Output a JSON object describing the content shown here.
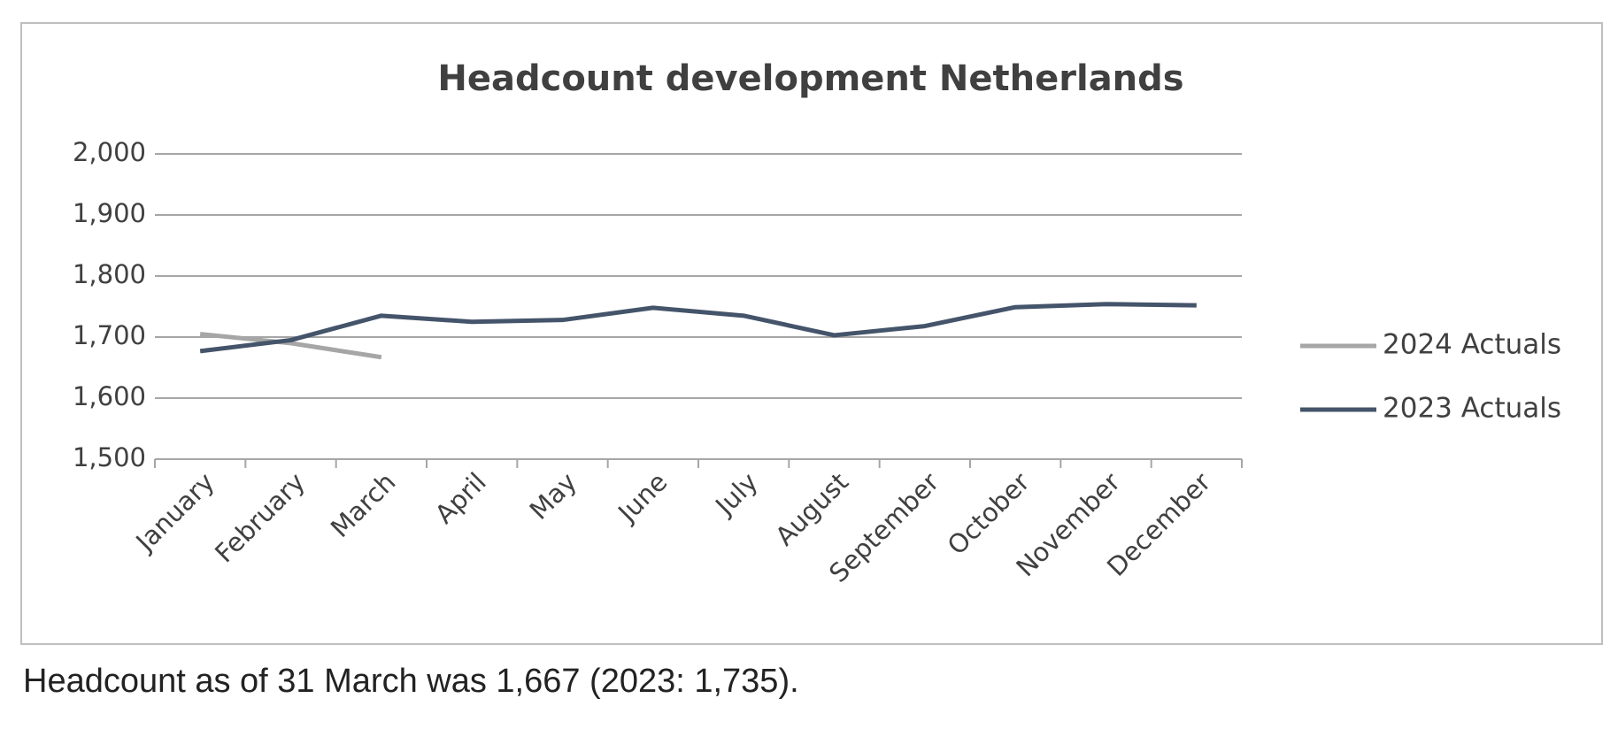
{
  "chart_data": {
    "type": "line",
    "title": "Headcount development Netherlands",
    "categories": [
      "January",
      "February",
      "March",
      "April",
      "May",
      "June",
      "July",
      "August",
      "September",
      "October",
      "November",
      "December"
    ],
    "series": [
      {
        "name": "2024 Actuals",
        "color": "#a6a6a6",
        "values": [
          1705,
          1690,
          1667,
          null,
          null,
          null,
          null,
          null,
          null,
          null,
          null,
          null
        ]
      },
      {
        "name": "2023 Actuals",
        "color": "#44546a",
        "values": [
          1677,
          1695,
          1735,
          1725,
          1728,
          1748,
          1735,
          1703,
          1718,
          1749,
          1754,
          1752
        ]
      }
    ],
    "ylim": [
      1500,
      2000
    ],
    "yticks": [
      {
        "value": 1500,
        "label": "1,500"
      },
      {
        "value": 1600,
        "label": "1,600"
      },
      {
        "value": 1700,
        "label": "1,700"
      },
      {
        "value": 1800,
        "label": "1,800"
      },
      {
        "value": 1900,
        "label": "1,900"
      },
      {
        "value": 2000,
        "label": "2,000"
      }
    ],
    "grid": true,
    "legend": "right"
  },
  "caption": "Headcount as of 31 March was 1,667 (2023: 1,735)."
}
